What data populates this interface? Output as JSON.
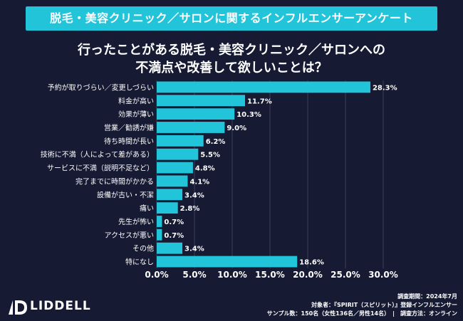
{
  "header": {
    "banner": "脱毛・美容クリニック／サロンに関するインフルエンサーアンケート",
    "title_line1": "行ったことがある脱毛・美容クリニック／サロンへの",
    "title_line2": "不満点や改善して欲しいことは？"
  },
  "colors": {
    "background": "#161a33",
    "accent": "#21c4d9",
    "bar": "#21c4d9",
    "grid": "#3b3f5a",
    "text": "#ffffff"
  },
  "chart_data": {
    "type": "bar",
    "orientation": "horizontal",
    "categories": [
      "予約が取りづらい／変更しづらい",
      "料金が高い",
      "効果が薄い",
      "営業／勧誘が嫌",
      "待ち時間が長い",
      "技術に不満（人によって差がある）",
      "サービスに不満（説明不足など）",
      "完了までに時間がかかる",
      "設備が古い・不潔",
      "痛い",
      "先生が怖い",
      "アクセスが悪い",
      "その他",
      "特になし"
    ],
    "values": [
      28.3,
      11.7,
      10.3,
      9.0,
      6.2,
      5.5,
      4.8,
      4.1,
      3.4,
      2.8,
      0.7,
      0.7,
      3.4,
      18.6
    ],
    "value_labels": [
      "28.3%",
      "11.7%",
      "10.3%",
      "9.0%",
      "6.2%",
      "5.5%",
      "4.8%",
      "4.1%",
      "3.4%",
      "2.8%",
      "0.7%",
      "0.7%",
      "3.4%",
      "18.6%"
    ],
    "xlim": [
      0,
      30
    ],
    "xticks": [
      0,
      5,
      10,
      15,
      20,
      25,
      30
    ],
    "xtick_labels": [
      "0.0%",
      "5.0%",
      "10.0%",
      "15.0%",
      "20.0%",
      "25.0%",
      "30.0%"
    ],
    "grid": true
  },
  "brand": {
    "name": "LIDDELL",
    "logo_icon": "liddell-logo-icon"
  },
  "footer": {
    "line1": "調査期間：2024年7月",
    "line2": "対象者：『SPIRIT（スピリット）』登録インフルエンサー",
    "line3": "サンプル数：150名（女性136名／男性14名）　|　調査方法：オンライン"
  }
}
